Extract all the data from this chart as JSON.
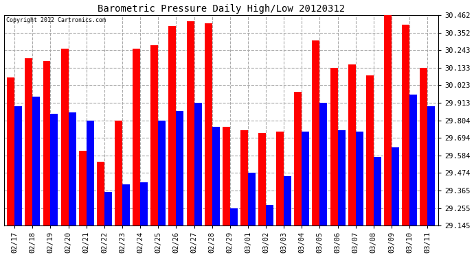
{
  "title": "Barometric Pressure Daily High/Low 20120312",
  "copyright_text": "Copyright 2012 Cartronics.com",
  "dates": [
    "02/17",
    "02/18",
    "02/19",
    "02/20",
    "02/21",
    "02/22",
    "02/23",
    "02/24",
    "02/25",
    "02/26",
    "02/27",
    "02/28",
    "02/29",
    "03/01",
    "03/02",
    "03/03",
    "03/04",
    "03/05",
    "03/06",
    "03/07",
    "03/08",
    "03/09",
    "03/10",
    "03/11"
  ],
  "high_values": [
    30.073,
    30.193,
    30.173,
    30.253,
    29.613,
    29.543,
    29.803,
    30.253,
    30.273,
    30.393,
    30.423,
    30.413,
    29.763,
    29.743,
    29.723,
    29.733,
    29.983,
    30.303,
    30.133,
    30.153,
    30.083,
    30.462,
    30.403,
    30.133
  ],
  "low_values": [
    29.893,
    29.953,
    29.843,
    29.853,
    29.803,
    29.355,
    29.405,
    29.415,
    29.803,
    29.863,
    29.913,
    29.763,
    29.255,
    29.475,
    29.275,
    29.455,
    29.733,
    29.913,
    29.743,
    29.733,
    29.574,
    29.634,
    29.963,
    29.893
  ],
  "high_color": "#ff0000",
  "low_color": "#0000ff",
  "ylim_min": 29.145,
  "ylim_max": 30.462,
  "yticks": [
    29.145,
    29.255,
    29.365,
    29.474,
    29.584,
    29.694,
    29.804,
    29.913,
    30.023,
    30.133,
    30.243,
    30.352,
    30.462
  ],
  "bg_color": "#ffffff",
  "grid_color": "#aaaaaa",
  "bar_width": 0.42,
  "figwidth": 6.9,
  "figheight": 3.75,
  "dpi": 100
}
